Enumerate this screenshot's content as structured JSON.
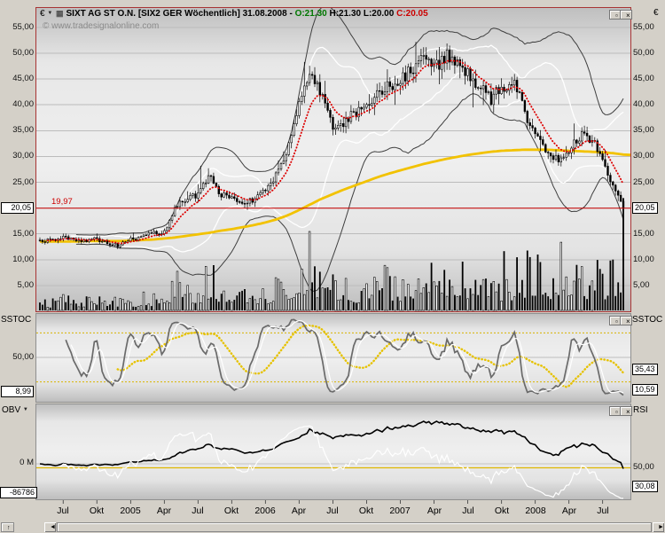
{
  "app": {
    "background": "#d4d0c8"
  },
  "icons": {
    "dropdown": "▼",
    "panel_detach": "▫",
    "panel_close": "×",
    "scroll_up": "↑",
    "scroll_left": "◄",
    "scroll_right": "►",
    "instrument": "▦"
  },
  "main_panel": {
    "unit_left": "€",
    "unit_right": "€",
    "title": {
      "instrument": "SIXT AG ST O.N.",
      "detail": "[SIX2 GER  Wöchentlich] 31.08.2008 -",
      "o": "O:21.30",
      "h": "H:21.30",
      "l": "L:20.00",
      "c": "C:20.05"
    },
    "watermark": "© www.tradesignalonline.com",
    "alert_line_label": "19,97",
    "price_badge": "20,05",
    "y_ticks": [
      {
        "v": 55,
        "label": "55,00"
      },
      {
        "v": 50,
        "label": "50,00"
      },
      {
        "v": 45,
        "label": "45,00"
      },
      {
        "v": 40,
        "label": "40,00"
      },
      {
        "v": 35,
        "label": "35,00"
      },
      {
        "v": 30,
        "label": "30,00"
      },
      {
        "v": 25,
        "label": "25,00"
      },
      {
        "v": 15,
        "label": "15,00"
      },
      {
        "v": 10,
        "label": "10,00"
      },
      {
        "v": 5,
        "label": "5,00"
      }
    ]
  },
  "stoch_panel": {
    "name_left": "SSTOC",
    "name_right": "SSTOC",
    "y_tick": {
      "v": 50,
      "label": "50,00"
    },
    "left_badge": {
      "v": 8.99,
      "label": "8,99"
    },
    "right_badges": [
      {
        "v": 35.43,
        "label": "35,43"
      },
      {
        "v": 10.59,
        "label": "10,59"
      }
    ]
  },
  "lower_panel": {
    "name_left": "OBV",
    "name_right": "RSI",
    "left_tick": {
      "label": "0 M"
    },
    "left_badge": {
      "label": "-86786"
    },
    "right_tick": {
      "v": 50,
      "label": "50,00"
    },
    "right_badge": {
      "v": 30.08,
      "label": "30,08"
    }
  },
  "time_axis": {
    "labels": [
      {
        "text": "Jul",
        "m": 2
      },
      {
        "text": "Okt",
        "m": 5
      },
      {
        "text": "2005",
        "m": 8
      },
      {
        "text": "Apr",
        "m": 11
      },
      {
        "text": "Jul",
        "m": 14
      },
      {
        "text": "Okt",
        "m": 17
      },
      {
        "text": "2006",
        "m": 20
      },
      {
        "text": "Apr",
        "m": 23
      },
      {
        "text": "Jul",
        "m": 26
      },
      {
        "text": "Okt",
        "m": 29
      },
      {
        "text": "2007",
        "m": 32
      },
      {
        "text": "Apr",
        "m": 35
      },
      {
        "text": "Jul",
        "m": 38
      },
      {
        "text": "Okt",
        "m": 41
      },
      {
        "text": "2008",
        "m": 44
      },
      {
        "text": "Apr",
        "m": 47
      },
      {
        "text": "Jul",
        "m": 50
      }
    ]
  },
  "chart_data": [
    {
      "type": "candlestick",
      "title": "SIXT AG ST O.N. [SIX2 GER Wöchentlich]",
      "frequency": "weekly",
      "x_start": "2004-05",
      "x_end": "2008-08",
      "weeks_per_month": 4.345,
      "bar_count": 226,
      "ylim": [
        0,
        58
      ],
      "y_ticks": [
        5,
        10,
        15,
        20,
        25,
        30,
        35,
        40,
        45,
        50,
        55
      ],
      "grid": true,
      "last_candle": {
        "open": 21.3,
        "high": 21.3,
        "low": 20.0,
        "close": 20.05
      },
      "alert_line": 19.97,
      "monthly_close_anchors": [
        13.6,
        13.8,
        14.2,
        14.0,
        13.4,
        14.0,
        13.2,
        12.8,
        13.9,
        14.4,
        15.2,
        15.0,
        20.5,
        22.0,
        22.5,
        26.5,
        22.8,
        22.2,
        20.8,
        21.8,
        23.5,
        26.5,
        31.5,
        40.5,
        46.0,
        42.0,
        35.5,
        36.5,
        38.5,
        40.0,
        42.5,
        43.5,
        44.5,
        46.5,
        50.0,
        47.5,
        49.5,
        48.0,
        46.5,
        43.5,
        41.0,
        43.5,
        45.0,
        38.5,
        34.0,
        30.5,
        29.0,
        31.0,
        34.5,
        33.5,
        28.5,
        23.5,
        20.05
      ],
      "long_ma_anchors": [
        13.5,
        13.5,
        13.5,
        13.5,
        13.6,
        13.6,
        13.6,
        13.6,
        13.7,
        13.8,
        13.9,
        14.1,
        14.3,
        14.6,
        14.9,
        15.2,
        15.6,
        15.9,
        16.3,
        16.7,
        17.2,
        17.8,
        18.6,
        19.6,
        20.7,
        21.8,
        22.7,
        23.6,
        24.4,
        25.2,
        26.0,
        26.7,
        27.3,
        27.9,
        28.5,
        29.0,
        29.5,
        29.9,
        30.3,
        30.6,
        30.9,
        31.1,
        31.2,
        31.3,
        31.3,
        31.3,
        31.2,
        31.1,
        31.0,
        30.9,
        30.8,
        30.6,
        30.3
      ],
      "monthly_volume_profile": [
        1.5,
        1.5,
        1.6,
        1.8,
        1.5,
        1.8,
        1.5,
        1.5,
        1.8,
        2.0,
        2.4,
        2.2,
        6.0,
        4.5,
        3.2,
        4.5,
        3.5,
        3.0,
        3.2,
        3.4,
        3.0,
        4.0,
        5.0,
        6.5,
        7.5,
        6.0,
        5.0,
        4.5,
        4.0,
        4.5,
        5.0,
        4.5,
        5.0,
        5.0,
        6.0,
        5.0,
        5.0,
        5.0,
        6.0,
        7.0,
        6.0,
        5.0,
        5.5,
        6.0,
        5.5,
        6.5,
        5.5,
        5.0,
        6.0,
        5.0,
        5.5,
        6.5,
        7.5
      ],
      "extreme_points": [
        {
          "m": 14.3,
          "type": "high",
          "v": 28.2
        },
        {
          "m": 23.4,
          "type": "high",
          "v": 48.3
        },
        {
          "m": 33.4,
          "type": "high",
          "v": 52.2
        },
        {
          "m": 35.5,
          "type": "high",
          "v": 51.2
        },
        {
          "m": 38.5,
          "type": "low",
          "v": 39.5
        },
        {
          "m": 47.5,
          "type": "high",
          "v": 36.4
        }
      ],
      "noise_seed": 20080831,
      "noise_pct": 0.024,
      "colors": {
        "candle_up": "#ffffff",
        "candle_down": "#000000",
        "bollinger": "#ffffff",
        "envelope": "#3f3f3f",
        "ema_dotted": "#dd0000",
        "long_ma": "#f2c200",
        "alert_line": "#cc0000",
        "volume_up": "#ffffff",
        "volume_down": "#000000",
        "grid": "#bcbcbc"
      },
      "indicators": [
        {
          "name": "Bollinger",
          "period": 20,
          "k": 2
        },
        {
          "name": "Envelope",
          "period": 30,
          "k": 3
        },
        {
          "name": "EMA",
          "period": 10,
          "style": "dotted"
        },
        {
          "name": "SMA-long",
          "source": "long_ma_anchors"
        }
      ]
    },
    {
      "type": "line",
      "name": "SSTOC",
      "ylim": [
        0,
        100
      ],
      "ref_lines": [
        {
          "v": 80,
          "style": "dotted",
          "color": "#d8b400"
        },
        {
          "v": 50,
          "style": "solid",
          "color": "#bdbdbd"
        },
        {
          "v": 20,
          "style": "dotted",
          "color": "#d8b400"
        }
      ],
      "series": [
        {
          "name": "SlowK",
          "period": 9,
          "smooth": 3,
          "color": "#6a6a6a",
          "current": 10.59
        },
        {
          "name": "SlowD",
          "smooth": 4,
          "color": "#ffffff",
          "current": 35.43
        },
        {
          "name": "Smoothed",
          "smooth": 18,
          "color": "#e6c200",
          "style": "dotted",
          "current": 8.99
        }
      ]
    },
    {
      "type": "line",
      "name": "OBV / RSI",
      "series": [
        {
          "name": "OBV",
          "color": "#000000",
          "axis": "left",
          "zero_label": "0 M",
          "current": -86786
        },
        {
          "name": "RSI",
          "period": 14,
          "color": "#ffffff",
          "axis": "right",
          "current": 30.08
        }
      ],
      "ref_lines": [
        {
          "v": 50,
          "axis": "right",
          "color": "#dfb600"
        },
        {
          "v": 0,
          "axis": "left",
          "color": "#c4c4c4"
        }
      ]
    }
  ]
}
